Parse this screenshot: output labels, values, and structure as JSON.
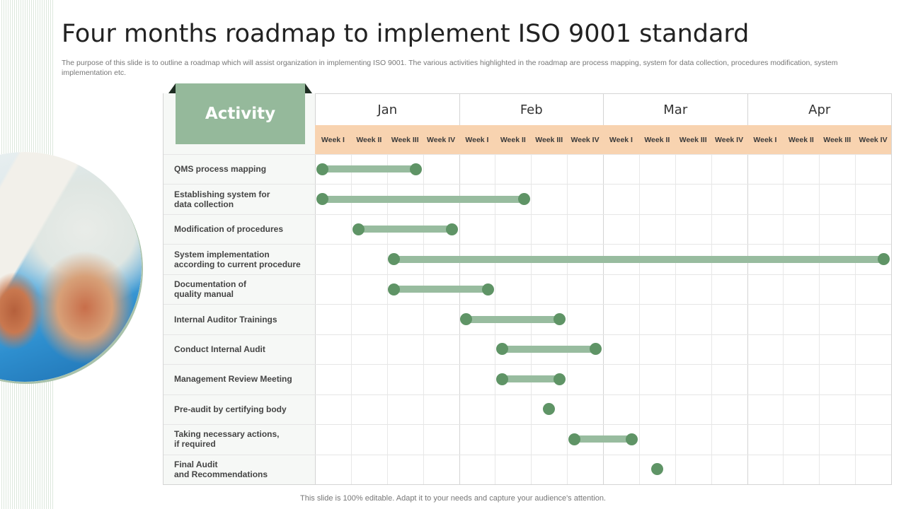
{
  "slide": {
    "title": "Four months roadmap to implement ISO 9001 standard",
    "subtitle": "The purpose of this slide is to outline a roadmap which will assist organization in implementing ISO 9001. The various activities highlighted in the roadmap are process mapping, system for data collection, procedures modification, system implementation etc.",
    "footer": "This slide is 100% editable. Adapt it to your needs and capture your audience's attention.",
    "activity_header": "Activity",
    "colors": {
      "accent_green": "#95b99b",
      "dot_green": "#5f9466",
      "bar_green": "#98bc9f",
      "week_band": "#f8d3b0",
      "triangle": "#e0a070"
    }
  },
  "chart_data": {
    "type": "gantt",
    "title": "Four months roadmap to implement ISO 9001 standard",
    "months": [
      "Jan",
      "Feb",
      "Mar",
      "Apr"
    ],
    "weeks": [
      "Week I",
      "Week II",
      "Week III",
      "Week IV",
      "Week I",
      "Week II",
      "Week III",
      "Week IV",
      "Week I",
      "Week II",
      "Week III",
      "Week IV",
      "Week I",
      "Week II",
      "Week III",
      "Week IV"
    ],
    "tasks": [
      {
        "label": "QMS process mapping",
        "start": 0.2,
        "end": 2.8
      },
      {
        "label": "Establishing  system for\ndata collection",
        "start": 0.2,
        "end": 5.8
      },
      {
        "label": "Modification  of procedures",
        "start": 1.2,
        "end": 3.8
      },
      {
        "label": "System implementation\naccording to current procedure",
        "start": 2.2,
        "end": 15.8
      },
      {
        "label": "Documentation  of\nquality  manual",
        "start": 2.2,
        "end": 4.8
      },
      {
        "label": "Internal Auditor Trainings",
        "start": 4.2,
        "end": 6.8
      },
      {
        "label": "Conduct Internal Audit",
        "start": 5.2,
        "end": 7.8
      },
      {
        "label": "Management Review Meeting",
        "start": 5.2,
        "end": 6.8
      },
      {
        "label": "Pre-audit by  certifying body",
        "start": 6.5,
        "end": 6.5
      },
      {
        "label": "Taking necessary actions,\nif required",
        "start": 7.2,
        "end": 8.8
      },
      {
        "label": "Final  Audit\nand Recommendations",
        "start": 9.5,
        "end": 9.5
      }
    ],
    "units": "week index (0 = start of Jan Week I, 16 = end of Apr Week IV)"
  }
}
